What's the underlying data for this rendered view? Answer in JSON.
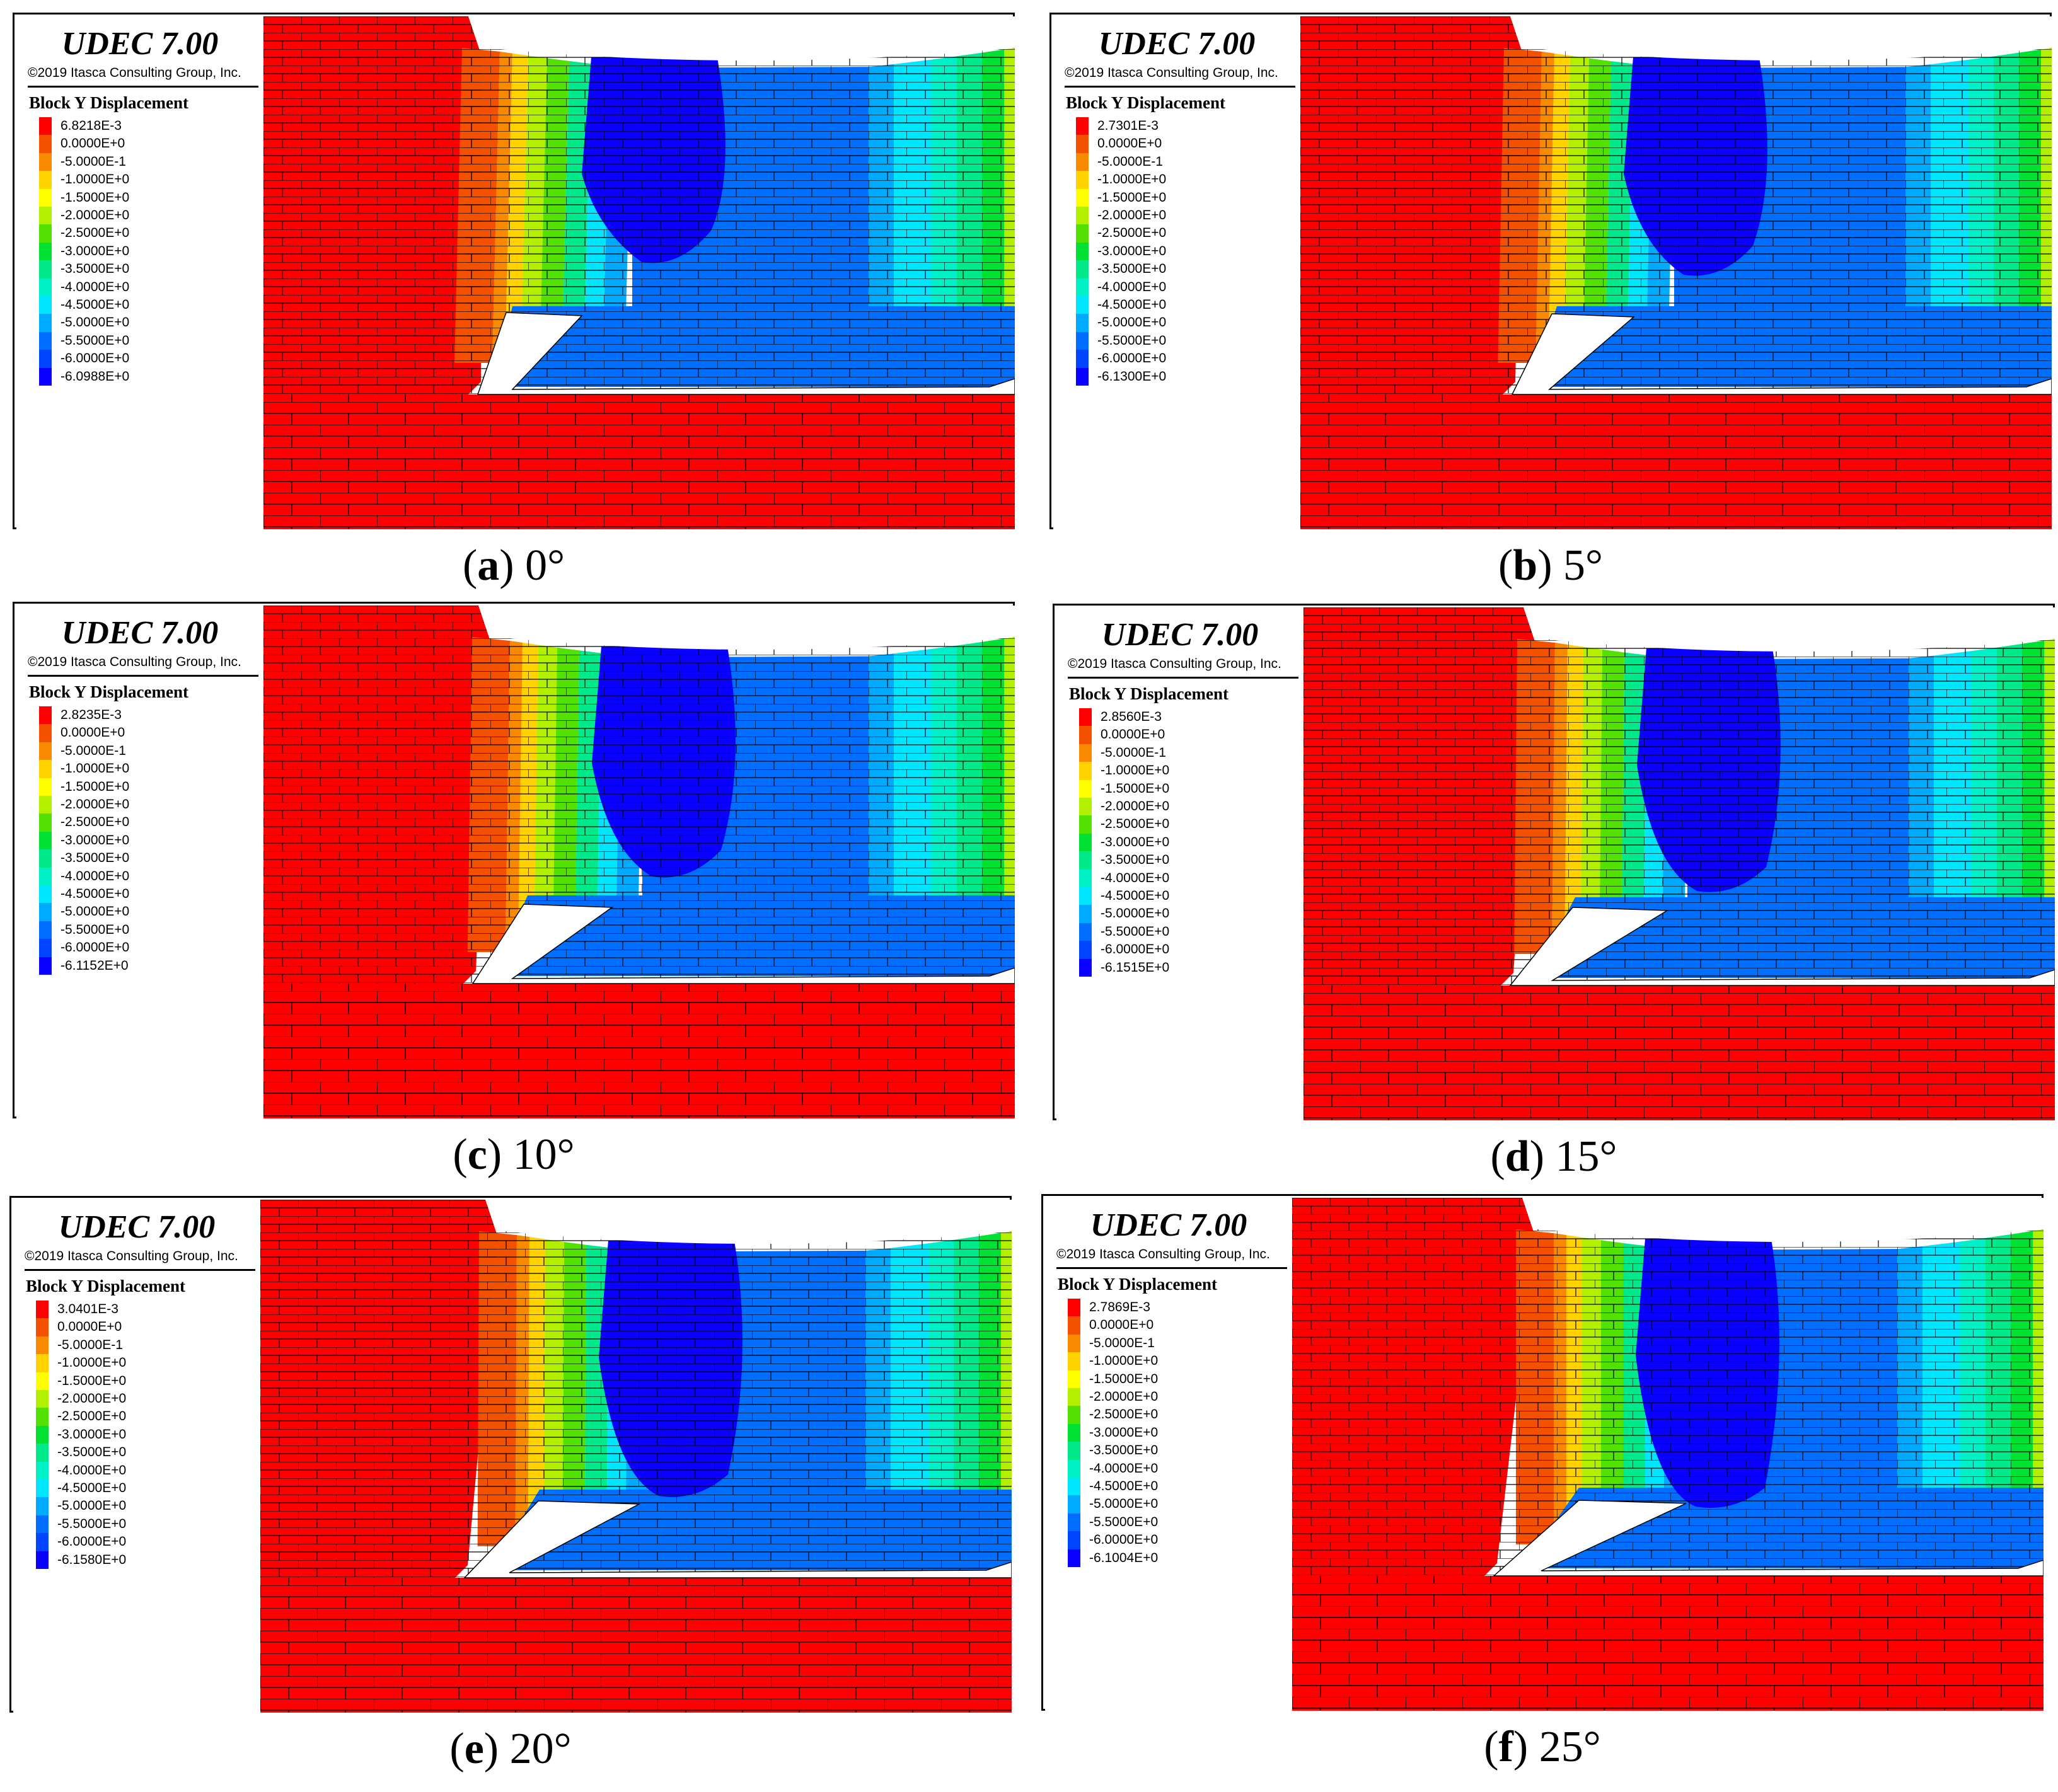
{
  "colors": [
    "#ff0000",
    "#f35100",
    "#f98a00",
    "#ffd200",
    "#ffff00",
    "#b2f000",
    "#52e100",
    "#00e134",
    "#00e98a",
    "#00f1c8",
    "#00e6ff",
    "#00aaff",
    "#006fff",
    "#0044ff",
    "#0a00ff"
  ],
  "legend_title": "Block Y Displacement",
  "software": "UDEC 7.00",
  "copyright": "©2019 Itasca Consulting Group, Inc.",
  "panels": [
    {
      "letter": "a",
      "angle": "0°",
      "angle_deg": 0,
      "labels": [
        "6.8218E-3",
        "0.0000E+0",
        "-5.0000E-1",
        "-1.0000E+0",
        "-1.5000E+0",
        "-2.0000E+0",
        "-2.5000E+0",
        "-3.0000E+0",
        "-3.5000E+0",
        "-4.0000E+0",
        "-4.5000E+0",
        "-5.0000E+0",
        "-5.5000E+0",
        "-6.0000E+0",
        "-6.0988E+0"
      ]
    },
    {
      "letter": "b",
      "angle": "5°",
      "angle_deg": 5,
      "labels": [
        "2.7301E-3",
        "0.0000E+0",
        "-5.0000E-1",
        "-1.0000E+0",
        "-1.5000E+0",
        "-2.0000E+0",
        "-2.5000E+0",
        "-3.0000E+0",
        "-3.5000E+0",
        "-4.0000E+0",
        "-4.5000E+0",
        "-5.0000E+0",
        "-5.5000E+0",
        "-6.0000E+0",
        "-6.1300E+0"
      ]
    },
    {
      "letter": "c",
      "angle": "10°",
      "angle_deg": 10,
      "labels": [
        "2.8235E-3",
        "0.0000E+0",
        "-5.0000E-1",
        "-1.0000E+0",
        "-1.5000E+0",
        "-2.0000E+0",
        "-2.5000E+0",
        "-3.0000E+0",
        "-3.5000E+0",
        "-4.0000E+0",
        "-4.5000E+0",
        "-5.0000E+0",
        "-5.5000E+0",
        "-6.0000E+0",
        "-6.1152E+0"
      ]
    },
    {
      "letter": "d",
      "angle": "15°",
      "angle_deg": 15,
      "labels": [
        "2.8560E-3",
        "0.0000E+0",
        "-5.0000E-1",
        "-1.0000E+0",
        "-1.5000E+0",
        "-2.0000E+0",
        "-2.5000E+0",
        "-3.0000E+0",
        "-3.5000E+0",
        "-4.0000E+0",
        "-4.5000E+0",
        "-5.0000E+0",
        "-5.5000E+0",
        "-6.0000E+0",
        "-6.1515E+0"
      ]
    },
    {
      "letter": "e",
      "angle": "20°",
      "angle_deg": 20,
      "labels": [
        "3.0401E-3",
        "0.0000E+0",
        "-5.0000E-1",
        "-1.0000E+0",
        "-1.5000E+0",
        "-2.0000E+0",
        "-2.5000E+0",
        "-3.0000E+0",
        "-3.5000E+0",
        "-4.0000E+0",
        "-4.5000E+0",
        "-5.0000E+0",
        "-5.5000E+0",
        "-6.0000E+0",
        "-6.1580E+0"
      ]
    },
    {
      "letter": "f",
      "angle": "25°",
      "angle_deg": 25,
      "labels": [
        "2.7869E-3",
        "0.0000E+0",
        "-5.0000E-1",
        "-1.0000E+0",
        "-1.5000E+0",
        "-2.0000E+0",
        "-2.5000E+0",
        "-3.0000E+0",
        "-3.5000E+0",
        "-4.0000E+0",
        "-4.5000E+0",
        "-5.0000E+0",
        "-5.5000E+0",
        "-6.0000E+0",
        "-6.1004E+0"
      ]
    }
  ]
}
